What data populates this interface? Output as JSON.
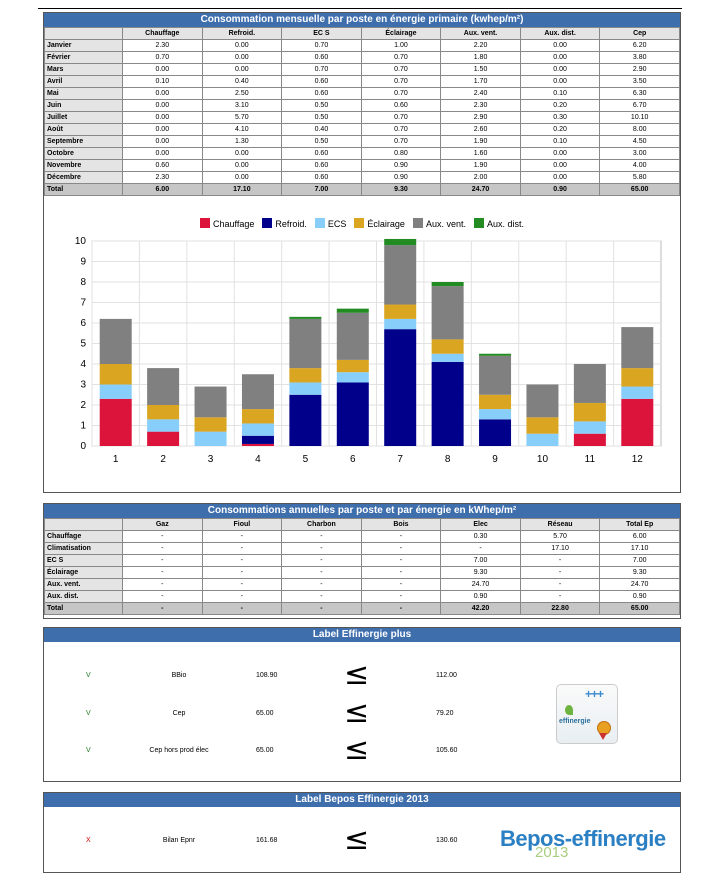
{
  "monthly": {
    "title": "Consommation mensuelle par poste en énergie primaire (kwhep/m²)",
    "columns": [
      "",
      "Chauffage",
      "Refroid.",
      "EC S",
      "Éclairage",
      "Aux. vent.",
      "Aux. dist.",
      "Cep"
    ],
    "rows": [
      {
        "label": "Janvier",
        "values": [
          "2.30",
          "0.00",
          "0.70",
          "1.00",
          "2.20",
          "0.00",
          "6.20"
        ]
      },
      {
        "label": "Février",
        "values": [
          "0.70",
          "0.00",
          "0.60",
          "0.70",
          "1.80",
          "0.00",
          "3.80"
        ]
      },
      {
        "label": "Mars",
        "values": [
          "0.00",
          "0.00",
          "0.70",
          "0.70",
          "1.50",
          "0.00",
          "2.90"
        ]
      },
      {
        "label": "Avril",
        "values": [
          "0.10",
          "0.40",
          "0.60",
          "0.70",
          "1.70",
          "0.00",
          "3.50"
        ]
      },
      {
        "label": "Mai",
        "values": [
          "0.00",
          "2.50",
          "0.60",
          "0.70",
          "2.40",
          "0.10",
          "6.30"
        ]
      },
      {
        "label": "Juin",
        "values": [
          "0.00",
          "3.10",
          "0.50",
          "0.60",
          "2.30",
          "0.20",
          "6.70"
        ]
      },
      {
        "label": "Juillet",
        "values": [
          "0.00",
          "5.70",
          "0.50",
          "0.70",
          "2.90",
          "0.30",
          "10.10"
        ]
      },
      {
        "label": "Août",
        "values": [
          "0.00",
          "4.10",
          "0.40",
          "0.70",
          "2.60",
          "0.20",
          "8.00"
        ]
      },
      {
        "label": "Septembre",
        "values": [
          "0.00",
          "1.30",
          "0.50",
          "0.70",
          "1.90",
          "0.10",
          "4.50"
        ]
      },
      {
        "label": "Octobre",
        "values": [
          "0.00",
          "0.00",
          "0.60",
          "0.80",
          "1.60",
          "0.00",
          "3.00"
        ]
      },
      {
        "label": "Novembre",
        "values": [
          "0.60",
          "0.00",
          "0.60",
          "0.90",
          "1.90",
          "0.00",
          "4.00"
        ]
      },
      {
        "label": "Décembre",
        "values": [
          "2.30",
          "0.00",
          "0.60",
          "0.90",
          "2.00",
          "0.00",
          "5.80"
        ]
      }
    ],
    "total": {
      "label": "Total",
      "values": [
        "6.00",
        "17.10",
        "7.00",
        "9.30",
        "24.70",
        "0.90",
        "65.00"
      ]
    }
  },
  "chart_data": {
    "type": "bar",
    "stacked": true,
    "categories": [
      "1",
      "2",
      "3",
      "4",
      "5",
      "6",
      "7",
      "8",
      "9",
      "10",
      "11",
      "12"
    ],
    "series": [
      {
        "name": "Chauffage",
        "color": "#dc143c",
        "values": [
          2.3,
          0.7,
          0,
          0.1,
          0,
          0,
          0,
          0,
          0,
          0,
          0.6,
          2.3
        ]
      },
      {
        "name": "Refroid.",
        "color": "#00008b",
        "values": [
          0,
          0,
          0,
          0.4,
          2.5,
          3.1,
          5.7,
          4.1,
          1.3,
          0,
          0,
          0
        ]
      },
      {
        "name": "ECS",
        "color": "#87cefa",
        "values": [
          0.7,
          0.6,
          0.7,
          0.6,
          0.6,
          0.5,
          0.5,
          0.4,
          0.5,
          0.6,
          0.6,
          0.6
        ]
      },
      {
        "name": "Éclairage",
        "color": "#daa520",
        "values": [
          1.0,
          0.7,
          0.7,
          0.7,
          0.7,
          0.6,
          0.7,
          0.7,
          0.7,
          0.8,
          0.9,
          0.9
        ]
      },
      {
        "name": "Aux. vent.",
        "color": "#808080",
        "values": [
          2.2,
          1.8,
          1.5,
          1.7,
          2.4,
          2.3,
          2.9,
          2.6,
          1.9,
          1.6,
          1.9,
          2.0
        ]
      },
      {
        "name": "Aux. dist.",
        "color": "#228b22",
        "values": [
          0,
          0,
          0,
          0,
          0.1,
          0.2,
          0.3,
          0.2,
          0.1,
          0,
          0,
          0
        ]
      }
    ],
    "yticks": [
      "0",
      "1",
      "2",
      "3",
      "4",
      "5",
      "6",
      "7",
      "8",
      "9",
      "10"
    ],
    "ylim": [
      0,
      10
    ],
    "grid": true,
    "legend": "top-center"
  },
  "annual": {
    "title": "Consommations annuelles par poste et par énergie en kWhep/m²",
    "columns": [
      "",
      "Gaz",
      "Fioul",
      "Charbon",
      "Bois",
      "Elec",
      "Réseau",
      "Total Ep"
    ],
    "rows": [
      {
        "label": "Chauffage",
        "values": [
          "-",
          "-",
          "-",
          "-",
          "0.30",
          "5.70",
          "6.00"
        ]
      },
      {
        "label": "Climatisation",
        "values": [
          "-",
          "-",
          "-",
          "-",
          "-",
          "17.10",
          "17.10"
        ]
      },
      {
        "label": "EC S",
        "values": [
          "-",
          "-",
          "-",
          "-",
          "7.00",
          "-",
          "7.00"
        ]
      },
      {
        "label": "Éclairage",
        "values": [
          "-",
          "-",
          "-",
          "-",
          "9.30",
          "-",
          "9.30"
        ]
      },
      {
        "label": "Aux. vent.",
        "values": [
          "-",
          "-",
          "-",
          "-",
          "24.70",
          "-",
          "24.70"
        ]
      },
      {
        "label": "Aux. dist.",
        "values": [
          "-",
          "-",
          "-",
          "-",
          "0.90",
          "-",
          "0.90"
        ]
      }
    ],
    "total": {
      "label": "Total",
      "values": [
        "-",
        "-",
        "-",
        "-",
        "42.20",
        "22.80",
        "65.00"
      ]
    }
  },
  "effinergie": {
    "title": "Label Effinergie plus",
    "rows": [
      {
        "check": "V",
        "name": "BBio",
        "value": "108.90",
        "limit": "112.00"
      },
      {
        "check": "V",
        "name": "Cep",
        "value": "65.00",
        "limit": "79.20"
      },
      {
        "check": "V",
        "name": "Cep hors prod élec",
        "value": "65.00",
        "limit": "105.60"
      }
    ],
    "leq_symbol": "≤",
    "logo_text": "effinergie",
    "logo_plus": "+++"
  },
  "bepos": {
    "title": "Label Bepos Effinergie 2013",
    "rows": [
      {
        "check": "X",
        "name": "Bilan Epnr",
        "value": "161.68",
        "limit": "130.60"
      }
    ],
    "leq_symbol": "≤",
    "logo_text": "Bepos-effinergie",
    "logo_year": "2013"
  },
  "colors": {
    "header_blue": "#3f6ead",
    "check_ok": "#1f7a1f",
    "check_fail": "#cc0000"
  }
}
